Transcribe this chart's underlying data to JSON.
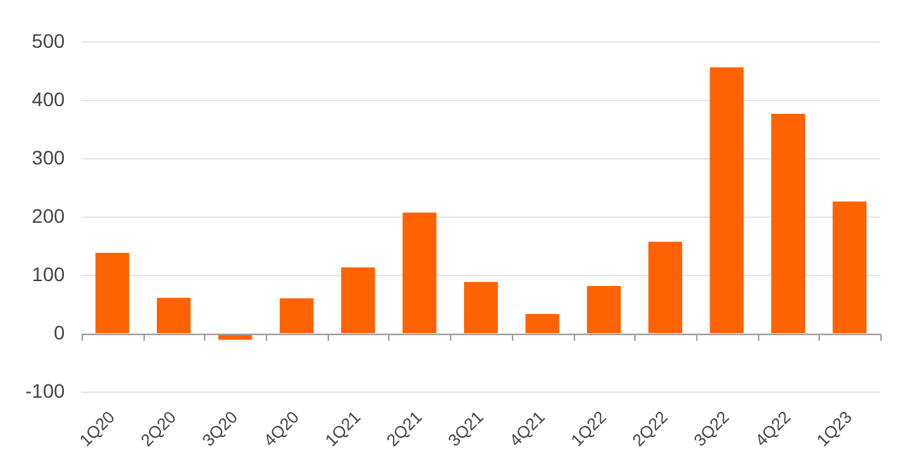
{
  "chart_data": {
    "type": "bar",
    "categories": [
      "1Q20",
      "2Q20",
      "3Q20",
      "4Q20",
      "1Q21",
      "2Q21",
      "3Q21",
      "4Q21",
      "1Q22",
      "2Q22",
      "3Q22",
      "4Q22",
      "1Q23"
    ],
    "values": [
      139,
      62,
      -10,
      61,
      114,
      208,
      89,
      34,
      82,
      158,
      457,
      377,
      227
    ],
    "color": "#ff6200",
    "ylim": [
      -100,
      500
    ],
    "yticks": [
      -100,
      0,
      100,
      200,
      300,
      400,
      500
    ],
    "grid": "y",
    "legend": false
  }
}
